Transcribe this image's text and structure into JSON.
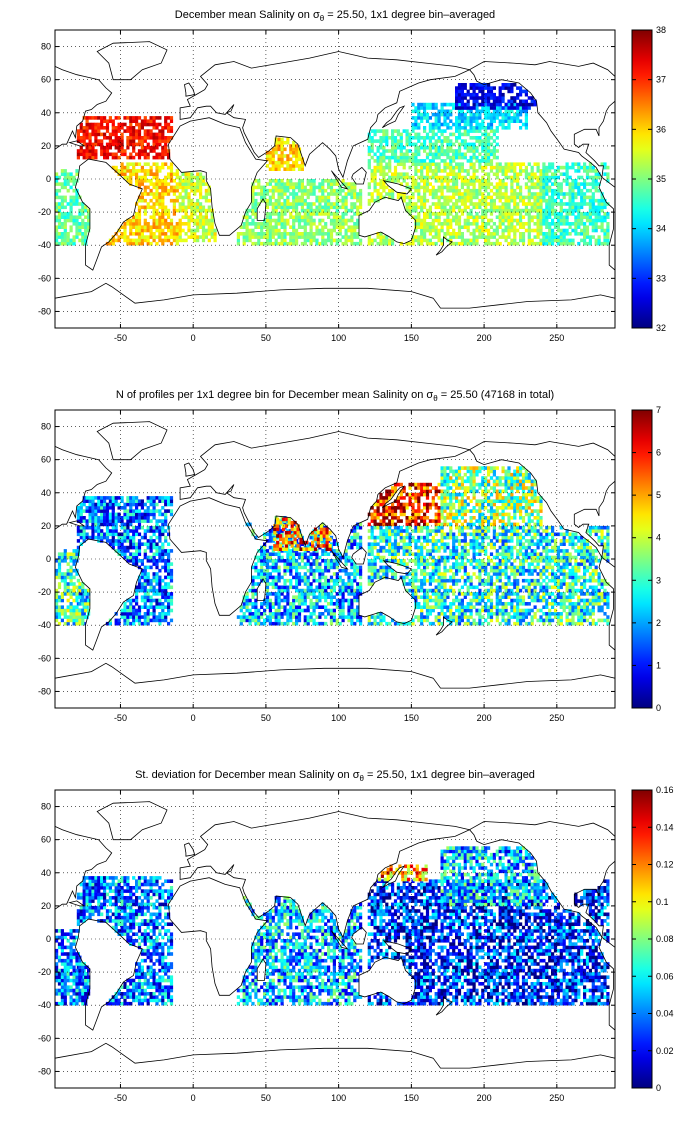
{
  "chart_data": [
    {
      "type": "heatmap",
      "title": "December mean Salinity on σθ = 25.50, 1x1 degree bin–averaged",
      "title_parts": {
        "pre": "December mean Salinity on ",
        "sym": "σ",
        "sub": "θ",
        "post": " = 25.50, 1x1 degree bin–averaged"
      },
      "xlim": [
        -95,
        290
      ],
      "ylim": [
        -90,
        90
      ],
      "xticks": [
        -50,
        0,
        50,
        100,
        150,
        200,
        250
      ],
      "yticks": [
        80,
        60,
        40,
        20,
        0,
        -20,
        -40,
        -60,
        -80
      ],
      "grid": true,
      "colorbar": {
        "min": 32,
        "max": 38,
        "ticks": [
          38,
          37,
          36,
          35,
          34,
          33,
          32
        ]
      },
      "colormap": "jet",
      "regions": [
        {
          "lon": [
            -80,
            -15
          ],
          "lat": [
            12,
            38
          ],
          "value": 37.2
        },
        {
          "lon": [
            -60,
            -10
          ],
          "lat": [
            -40,
            10
          ],
          "value": 36.0
        },
        {
          "lon": [
            -10,
            15
          ],
          "lat": [
            -38,
            5
          ],
          "value": 35.5
        },
        {
          "lon": [
            30,
            115
          ],
          "lat": [
            -40,
            0
          ],
          "value": 35.1
        },
        {
          "lon": [
            50,
            75
          ],
          "lat": [
            5,
            25
          ],
          "value": 36.0
        },
        {
          "lon": [
            120,
            240
          ],
          "lat": [
            -40,
            10
          ],
          "value": 35.3
        },
        {
          "lon": [
            120,
            210
          ],
          "lat": [
            10,
            30
          ],
          "value": 34.7
        },
        {
          "lon": [
            150,
            230
          ],
          "lat": [
            30,
            45
          ],
          "value": 34.0
        },
        {
          "lon": [
            180,
            240
          ],
          "lat": [
            42,
            58
          ],
          "value": 32.6
        },
        {
          "lon": [
            240,
            285
          ],
          "lat": [
            -40,
            10
          ],
          "value": 34.6
        },
        {
          "lon": [
            -95,
            -70
          ],
          "lat": [
            -40,
            5
          ],
          "value": 34.8
        }
      ]
    },
    {
      "type": "heatmap",
      "title": "N of profiles per 1x1 degree bin for December mean Salinity on σθ = 25.50 (47168 in total)",
      "title_parts": {
        "pre": "N of profiles per 1x1 degree bin for December mean Salinity on ",
        "sym": "σ",
        "sub": "θ",
        "post": " = 25.50 (47168 in total)"
      },
      "xlim": [
        -95,
        290
      ],
      "ylim": [
        -90,
        90
      ],
      "xticks": [
        -50,
        0,
        50,
        100,
        150,
        200,
        250
      ],
      "yticks": [
        80,
        60,
        40,
        20,
        0,
        -20,
        -40,
        -60,
        -80
      ],
      "grid": true,
      "colorbar": {
        "min": 0,
        "max": 7,
        "ticks": [
          7,
          6,
          5,
          4,
          3,
          2,
          1,
          0
        ]
      },
      "colormap": "jet",
      "regions": [
        {
          "lon": [
            -80,
            -15
          ],
          "lat": [
            -40,
            38
          ],
          "value": 1.8
        },
        {
          "lon": [
            30,
            115
          ],
          "lat": [
            -40,
            25
          ],
          "value": 2.2
        },
        {
          "lon": [
            55,
            95
          ],
          "lat": [
            5,
            25
          ],
          "value": 5.5
        },
        {
          "lon": [
            120,
            170
          ],
          "lat": [
            20,
            45
          ],
          "value": 6.0
        },
        {
          "lon": [
            120,
            285
          ],
          "lat": [
            -40,
            20
          ],
          "value": 2.8
        },
        {
          "lon": [
            170,
            240
          ],
          "lat": [
            20,
            55
          ],
          "value": 3.5
        },
        {
          "lon": [
            -95,
            -70
          ],
          "lat": [
            -40,
            5
          ],
          "value": 3.0
        }
      ]
    },
    {
      "type": "heatmap",
      "title": "St. deviation for December mean Salinity on σθ = 25.50, 1x1 degree bin–averaged",
      "title_parts": {
        "pre": "St. deviation for December mean Salinity on ",
        "sym": "σ",
        "sub": "θ",
        "post": " = 25.50, 1x1 degree bin–averaged"
      },
      "xlim": [
        -95,
        290
      ],
      "ylim": [
        -90,
        90
      ],
      "xticks": [
        -50,
        0,
        50,
        100,
        150,
        200,
        250
      ],
      "yticks": [
        80,
        60,
        40,
        20,
        0,
        -20,
        -40,
        -60,
        -80
      ],
      "grid": true,
      "colorbar": {
        "min": 0,
        "max": 0.16,
        "ticks": [
          0.16,
          0.14,
          0.12,
          0.1,
          0.08,
          0.06,
          0.04,
          0.02,
          0
        ]
      },
      "colormap": "jet",
      "regions": [
        {
          "lon": [
            -80,
            -15
          ],
          "lat": [
            -40,
            38
          ],
          "value": 0.04
        },
        {
          "lon": [
            30,
            115
          ],
          "lat": [
            -40,
            25
          ],
          "value": 0.05
        },
        {
          "lon": [
            120,
            285
          ],
          "lat": [
            -40,
            35
          ],
          "value": 0.025
        },
        {
          "lon": [
            125,
            160
          ],
          "lat": [
            35,
            45
          ],
          "value": 0.12
        },
        {
          "lon": [
            170,
            240
          ],
          "lat": [
            20,
            55
          ],
          "value": 0.05
        },
        {
          "lon": [
            -95,
            -70
          ],
          "lat": [
            -40,
            5
          ],
          "value": 0.04
        }
      ]
    }
  ]
}
